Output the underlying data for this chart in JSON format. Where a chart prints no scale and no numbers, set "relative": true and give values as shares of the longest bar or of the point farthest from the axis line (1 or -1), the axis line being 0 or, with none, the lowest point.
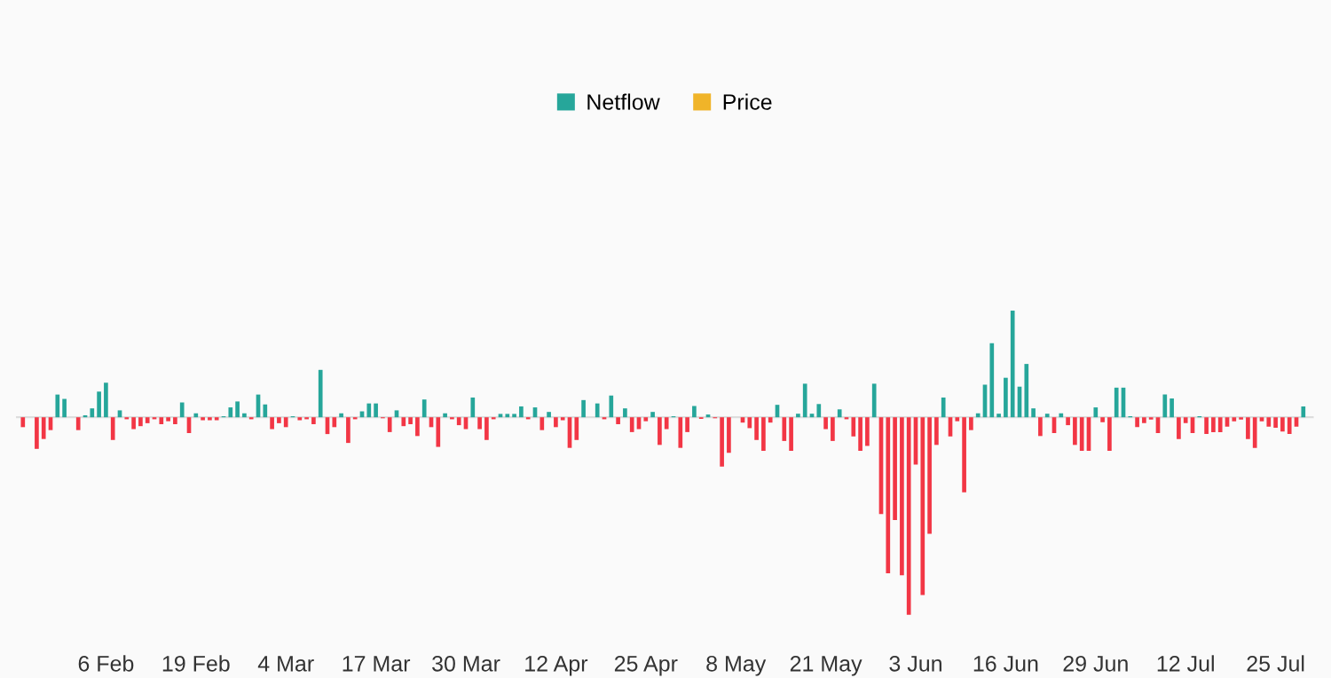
{
  "chart_data": {
    "type": "bar",
    "relative": true,
    "legend": "top",
    "categories": [
      null,
      null,
      null,
      null,
      null,
      null,
      null,
      null,
      null,
      null,
      null,
      null,
      "6 Feb",
      null,
      null,
      null,
      null,
      null,
      null,
      null,
      null,
      null,
      null,
      null,
      null,
      "19 Feb",
      null,
      null,
      null,
      null,
      null,
      null,
      null,
      null,
      null,
      null,
      null,
      null,
      "4 Mar",
      null,
      null,
      null,
      null,
      null,
      null,
      null,
      null,
      null,
      null,
      null,
      null,
      "17 Mar",
      null,
      null,
      null,
      null,
      null,
      null,
      null,
      null,
      null,
      null,
      null,
      null,
      "30 Mar",
      null,
      null,
      null,
      null,
      null,
      null,
      null,
      null,
      null,
      null,
      null,
      null,
      "12 Apr",
      null,
      null,
      null,
      null,
      null,
      null,
      null,
      null,
      null,
      null,
      null,
      null,
      "25 Apr",
      null,
      null,
      null,
      null,
      null,
      null,
      null,
      null,
      null,
      null,
      null,
      null,
      "8 May",
      null,
      null,
      null,
      null,
      null,
      null,
      null,
      null,
      null,
      null,
      null,
      null,
      "21 May",
      null,
      null,
      null,
      null,
      null,
      null,
      null,
      null,
      null,
      null,
      null,
      null,
      "3 Jun",
      null,
      null,
      null,
      null,
      null,
      null,
      null,
      null,
      null,
      null,
      null,
      null,
      "16 Jun",
      null,
      null,
      null,
      null,
      null,
      null,
      null,
      null,
      null,
      null,
      null,
      null,
      "29 Jun",
      null,
      null,
      null,
      null,
      null,
      null,
      null,
      null,
      null,
      null,
      null,
      null,
      "12 Jul",
      null,
      null,
      null,
      null,
      null,
      null,
      null,
      null,
      null,
      null,
      null,
      null,
      "25 Jul",
      null,
      null,
      null,
      null
    ],
    "series": [
      {
        "name": "Netflow",
        "color": "#26a69a",
        "values": [
          -0.05,
          0,
          -0.16,
          -0.11,
          -0.065,
          0.115,
          0.093,
          0,
          -0.065,
          0.01,
          0.045,
          0.13,
          0.175,
          -0.115,
          0.035,
          -0.01,
          -0.06,
          -0.045,
          -0.03,
          -0.01,
          -0.035,
          -0.02,
          -0.035,
          0.075,
          -0.08,
          0.02,
          -0.015,
          -0.015,
          -0.015,
          0.005,
          0.05,
          0.08,
          0.02,
          -0.01,
          0.115,
          0.065,
          -0.06,
          -0.03,
          -0.05,
          0.005,
          -0.015,
          -0.01,
          -0.035,
          0.24,
          -0.085,
          -0.05,
          0.02,
          -0.13,
          -0.01,
          0.03,
          0.07,
          0.07,
          -0.005,
          -0.075,
          0.035,
          -0.045,
          -0.035,
          -0.095,
          0.09,
          -0.05,
          -0.15,
          0.02,
          -0.01,
          -0.04,
          -0.06,
          0.1,
          -0.06,
          -0.115,
          -0.01,
          0.017,
          0.017,
          0.017,
          0.055,
          -0.01,
          0.05,
          -0.065,
          0.027,
          -0.05,
          -0.015,
          -0.155,
          -0.115,
          0.087,
          0,
          0.07,
          -0.01,
          0.11,
          -0.035,
          0.045,
          -0.075,
          -0.06,
          -0.02,
          0.027,
          -0.14,
          -0.06,
          0.005,
          -0.155,
          -0.075,
          0.057,
          -0.008,
          0.014,
          -0.005,
          -0.25,
          -0.18,
          0,
          -0.027,
          -0.055,
          -0.115,
          -0.17,
          -0.027,
          0.063,
          -0.12,
          -0.17,
          0.018,
          0.17,
          0.018,
          0.067,
          -0.06,
          -0.12,
          0.04,
          -0.01,
          -0.097,
          -0.17,
          -0.145,
          0.17,
          -0.49,
          -0.79,
          -0.52,
          -0.8,
          -1.0,
          -0.24,
          -0.9,
          -0.59,
          -0.14,
          0.1,
          -0.097,
          -0.02,
          -0.38,
          -0.065,
          0.02,
          0.165,
          0.375,
          0.018,
          0.2,
          0.54,
          0.155,
          0.27,
          0.045,
          -0.095,
          0.018,
          -0.08,
          0.02,
          -0.04,
          -0.14,
          -0.17,
          -0.17,
          0.05,
          -0.025,
          -0.17,
          0.15,
          0.15,
          0.005,
          -0.05,
          -0.03,
          -0.012,
          -0.08,
          0.115,
          0.095,
          -0.11,
          -0.03,
          -0.08,
          0.005,
          -0.085,
          -0.075,
          -0.075,
          -0.048,
          -0.02,
          -0.012,
          -0.11,
          -0.155,
          -0.02,
          -0.048,
          -0.053,
          -0.072,
          -0.085,
          -0.048,
          0.055
        ],
        "colors": [
          "#f23645",
          "#f23645",
          "#f23645",
          "#f23645",
          "#f23645",
          "#26a69a",
          "#26a69a",
          "#f23645",
          "#f23645",
          "#26a69a",
          "#26a69a",
          "#26a69a",
          "#26a69a",
          "#f23645",
          "#26a69a",
          "#f23645",
          "#f23645",
          "#f23645",
          "#f23645",
          "#f23645",
          "#f23645",
          "#f23645",
          "#f23645",
          "#26a69a",
          "#f23645",
          "#26a69a",
          "#f23645",
          "#f23645",
          "#f23645",
          "#26a69a",
          "#26a69a",
          "#26a69a",
          "#26a69a",
          "#f23645",
          "#26a69a",
          "#26a69a",
          "#f23645",
          "#f23645",
          "#f23645",
          "#26a69a",
          "#f23645",
          "#f23645",
          "#f23645",
          "#26a69a",
          "#f23645",
          "#f23645",
          "#26a69a",
          "#f23645",
          "#f23645",
          "#26a69a",
          "#26a69a",
          "#26a69a",
          "#f23645",
          "#f23645",
          "#26a69a",
          "#f23645",
          "#f23645",
          "#f23645",
          "#26a69a",
          "#f23645",
          "#f23645",
          "#26a69a",
          "#f23645",
          "#f23645",
          "#f23645",
          "#26a69a",
          "#f23645",
          "#f23645",
          "#f23645",
          "#26a69a",
          "#26a69a",
          "#26a69a",
          "#26a69a",
          "#f23645",
          "#26a69a",
          "#f23645",
          "#26a69a",
          "#f23645",
          "#f23645",
          "#f23645",
          "#f23645",
          "#26a69a",
          "#f23645",
          "#26a69a",
          "#f23645",
          "#26a69a",
          "#f23645",
          "#26a69a",
          "#f23645",
          "#f23645",
          "#f23645",
          "#26a69a",
          "#f23645",
          "#f23645",
          "#26a69a",
          "#f23645",
          "#f23645",
          "#26a69a",
          "#f23645",
          "#26a69a",
          "#f23645",
          "#f23645",
          "#f23645",
          "#f23645",
          "#f23645",
          "#f23645",
          "#f23645",
          "#f23645",
          "#f23645",
          "#26a69a",
          "#f23645",
          "#f23645",
          "#26a69a",
          "#26a69a",
          "#26a69a",
          "#26a69a",
          "#f23645",
          "#f23645",
          "#26a69a",
          "#f23645",
          "#f23645",
          "#f23645",
          "#f23645",
          "#26a69a",
          "#f23645",
          "#f23645",
          "#f23645",
          "#f23645",
          "#f23645",
          "#f23645",
          "#f23645",
          "#f23645",
          "#f23645",
          "#26a69a",
          "#f23645",
          "#f23645",
          "#f23645",
          "#f23645",
          "#26a69a",
          "#26a69a",
          "#26a69a",
          "#26a69a",
          "#26a69a",
          "#26a69a",
          "#26a69a",
          "#26a69a",
          "#26a69a",
          "#f23645",
          "#26a69a",
          "#f23645",
          "#26a69a",
          "#f23645",
          "#f23645",
          "#f23645",
          "#f23645",
          "#26a69a",
          "#f23645",
          "#f23645",
          "#26a69a",
          "#26a69a",
          "#26a69a",
          "#f23645",
          "#f23645",
          "#f23645",
          "#f23645",
          "#26a69a",
          "#26a69a",
          "#f23645",
          "#f23645",
          "#f23645",
          "#26a69a",
          "#f23645",
          "#f23645",
          "#f23645",
          "#f23645",
          "#f23645",
          "#f23645",
          "#f23645",
          "#f23645",
          "#f23645",
          "#f23645",
          "#f23645",
          "#f23645",
          "#f23645",
          "#f23645",
          "#26a69a"
        ]
      },
      {
        "name": "Price",
        "type": "line",
        "color": "#f0b429",
        "values": [
          null,
          null,
          null,
          null,
          null,
          null,
          null,
          null,
          null,
          null,
          null,
          null,
          null,
          null,
          null,
          null,
          null,
          null,
          null,
          null,
          null,
          null,
          null,
          null,
          null,
          null,
          null,
          null,
          null,
          null,
          null,
          null,
          null,
          null,
          null,
          null,
          null,
          null,
          null,
          null,
          null,
          null,
          null,
          null,
          null,
          null,
          null,
          null,
          null,
          null,
          null,
          null,
          null,
          null,
          null,
          null,
          null,
          null,
          null,
          null,
          null,
          null,
          null,
          null,
          null,
          null,
          null,
          null,
          null,
          null,
          null,
          null,
          null,
          null,
          null,
          null,
          null,
          null,
          null,
          null,
          null,
          null,
          null,
          null,
          null,
          null,
          null,
          null,
          null,
          null,
          null,
          null,
          null,
          null,
          null,
          null,
          null,
          null,
          null,
          null,
          null,
          null,
          null,
          null,
          null,
          null,
          null,
          null,
          null,
          null,
          null,
          null,
          null,
          null,
          null,
          null,
          null,
          null,
          null,
          null,
          null,
          null,
          null,
          null,
          null,
          null,
          null,
          null,
          null,
          null,
          null,
          null,
          null,
          null,
          null,
          null,
          null,
          null,
          null,
          null,
          null,
          null,
          null,
          null,
          null,
          null,
          null,
          null,
          null,
          null,
          null,
          null,
          null,
          null,
          null,
          null,
          null,
          null,
          null,
          null,
          null,
          null,
          null,
          null,
          null,
          null,
          null,
          null,
          null,
          null,
          null,
          null,
          null,
          null,
          null,
          null,
          null,
          null,
          null,
          null,
          null,
          null,
          null,
          null,
          null,
          null
        ]
      }
    ]
  }
}
